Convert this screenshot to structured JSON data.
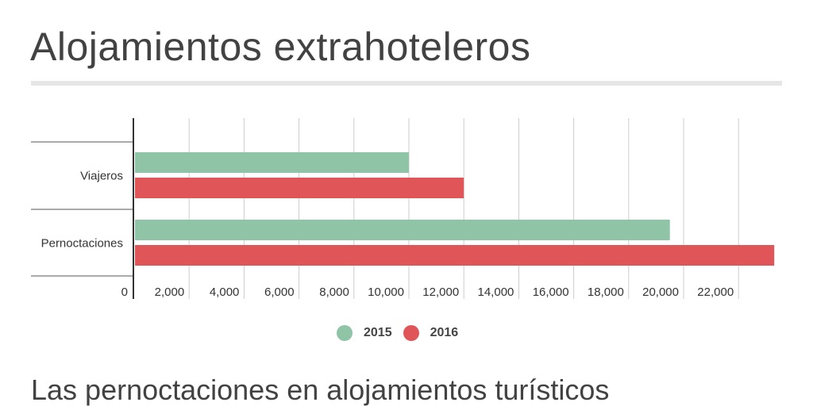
{
  "page": {
    "title": "Alojamientos extrahoteleros",
    "subtitle": "Las pernoctaciones en alojamientos turísticos"
  },
  "colors": {
    "series_2015": "#8fc4a6",
    "series_2016": "#e05557"
  },
  "chart_data": {
    "type": "bar",
    "orientation": "horizontal",
    "title": "",
    "xlabel": "",
    "ylabel": "",
    "categories": [
      "Viajeros",
      "Pernoctaciones"
    ],
    "series": [
      {
        "name": "2015",
        "values": [
          10000,
          19500
        ]
      },
      {
        "name": "2016",
        "values": [
          12000,
          23300
        ]
      }
    ],
    "xlim": [
      0,
      23300
    ],
    "xticks": [
      0,
      2000,
      4000,
      6000,
      8000,
      10000,
      12000,
      14000,
      16000,
      18000,
      20000,
      22000
    ],
    "xtick_labels": [
      "0",
      "2,000",
      "4,000",
      "6,000",
      "8,000",
      "10,000",
      "12,000",
      "14,000",
      "16,000",
      "18,000",
      "20,000",
      "22,000"
    ],
    "grid": true,
    "legend_position": "bottom-center"
  }
}
